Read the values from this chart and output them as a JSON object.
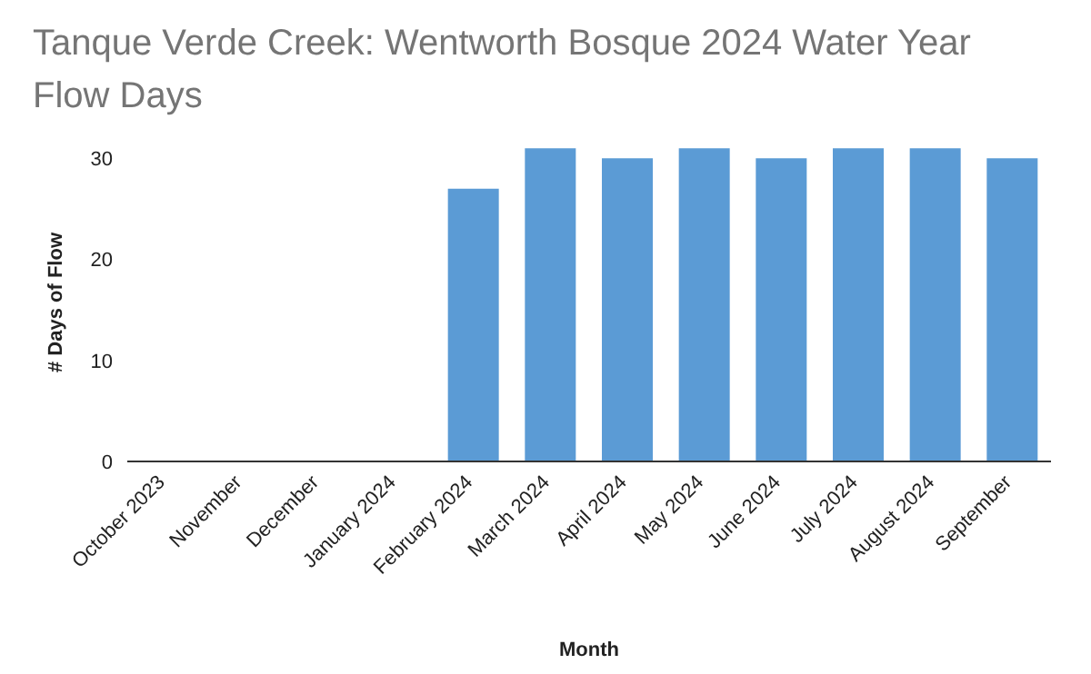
{
  "chart_data": {
    "type": "bar",
    "title": "Tanque Verde Creek: Wentworth Bosque 2024 Water Year Flow Days",
    "xlabel": "Month",
    "ylabel": "# Days of Flow",
    "categories": [
      "October 2023",
      "November",
      "December",
      "January 2024",
      "February 2024",
      "March 2024",
      "April 2024",
      "May 2024",
      "June 2024",
      "July 2024",
      "August 2024",
      "September"
    ],
    "values": [
      0,
      0,
      0,
      0,
      27,
      31,
      30,
      31,
      30,
      31,
      31,
      30
    ],
    "color": "#5b9bd5",
    "ylim": [
      0,
      32
    ],
    "yticks": [
      0,
      10,
      20,
      30
    ],
    "grid": false,
    "legend": false
  }
}
